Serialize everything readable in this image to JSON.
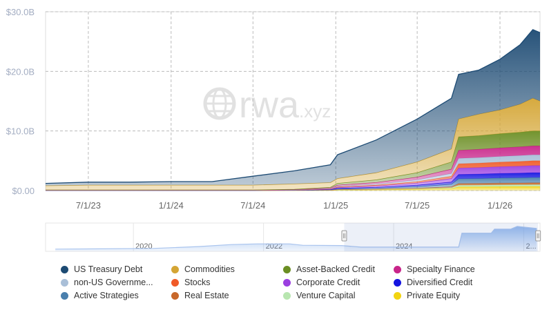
{
  "chart_data": {
    "type": "area",
    "stacked": true,
    "watermark": "rwa.xyz",
    "grid": true,
    "legend_position": "bottom",
    "ylim": [
      0,
      30
    ],
    "y_ticks": [
      "$0.00",
      "$10.0B",
      "$20.0B",
      "$30.0B"
    ],
    "y_tick_values": [
      0,
      10,
      20,
      30
    ],
    "x_ticks": [
      "7/1/23",
      "1/1/24",
      "7/1/24",
      "1/1/25",
      "7/1/25",
      "1/1/26"
    ],
    "x_tick_dates": [
      "2023-07-01",
      "2024-01-01",
      "2024-07-01",
      "2025-01-01",
      "2025-07-01",
      "2026-01-01"
    ],
    "xlim": [
      "2023-03-28",
      "2026-03-31"
    ],
    "x": [
      "2023-03-28",
      "2023-07-01",
      "2023-10-01",
      "2024-01-01",
      "2024-04-01",
      "2024-07-01",
      "2024-10-01",
      "2024-12-20",
      "2025-01-05",
      "2025-04-01",
      "2025-07-01",
      "2025-09-15",
      "2025-10-01",
      "2025-11-15",
      "2026-01-01",
      "2026-02-15",
      "2026-03-15",
      "2026-03-31"
    ],
    "series": [
      {
        "name": "Private Equity",
        "color": "#f2d410",
        "values": [
          0.01,
          0.01,
          0.01,
          0.01,
          0.01,
          0.01,
          0.01,
          0.04,
          0.08,
          0.13,
          0.21,
          0.34,
          0.63,
          0.64,
          0.67,
          0.69,
          0.7,
          0.7
        ]
      },
      {
        "name": "Venture Capital",
        "color": "#b8e6b0",
        "values": [
          0,
          0,
          0,
          0,
          0,
          0,
          0.01,
          0.02,
          0.04,
          0.05,
          0.09,
          0.14,
          0.27,
          0.28,
          0.29,
          0.29,
          0.3,
          0.3
        ]
      },
      {
        "name": "Real Estate",
        "color": "#c8682a",
        "values": [
          0,
          0,
          0,
          0,
          0,
          0,
          0.01,
          0.02,
          0.04,
          0.05,
          0.09,
          0.14,
          0.27,
          0.28,
          0.29,
          0.29,
          0.3,
          0.3
        ]
      },
      {
        "name": "Active Strategies",
        "color": "#4a7fad",
        "values": [
          0.01,
          0.01,
          0.01,
          0.01,
          0.01,
          0.01,
          0.02,
          0.05,
          0.11,
          0.16,
          0.27,
          0.43,
          0.81,
          0.83,
          0.86,
          0.88,
          0.9,
          0.9
        ]
      },
      {
        "name": "Diversified Credit",
        "color": "#1515e0",
        "values": [
          0.01,
          0.01,
          0.01,
          0.01,
          0.01,
          0.01,
          0.02,
          0.04,
          0.1,
          0.14,
          0.24,
          0.38,
          0.72,
          0.74,
          0.76,
          0.78,
          0.8,
          0.8
        ]
      },
      {
        "name": "Corporate Credit",
        "color": "#9b3fe0",
        "values": [
          0.01,
          0.01,
          0.01,
          0.01,
          0.01,
          0.01,
          0.02,
          0.06,
          0.14,
          0.22,
          0.36,
          0.58,
          1.08,
          1.1,
          1.14,
          1.18,
          1.2,
          1.2
        ]
      },
      {
        "name": "Stocks",
        "color": "#f05a28",
        "values": [
          0.01,
          0.01,
          0.01,
          0.01,
          0.01,
          0.01,
          0.02,
          0.04,
          0.1,
          0.14,
          0.24,
          0.38,
          0.72,
          0.74,
          0.76,
          0.78,
          0.8,
          0.8
        ]
      },
      {
        "name": "non-US Governme...",
        "color": "#a9bfd8",
        "values": [
          0.01,
          0.01,
          0.01,
          0.01,
          0.01,
          0.01,
          0.02,
          0.05,
          0.12,
          0.18,
          0.3,
          0.48,
          0.9,
          0.92,
          0.95,
          0.98,
          1.0,
          1.0
        ]
      },
      {
        "name": "Specialty Finance",
        "color": "#c8258a",
        "values": [
          0.02,
          0.02,
          0.02,
          0.02,
          0.02,
          0.02,
          0.03,
          0.08,
          0.18,
          0.27,
          0.45,
          0.72,
          1.35,
          1.38,
          1.43,
          1.47,
          1.5,
          1.5
        ]
      },
      {
        "name": "Asset-Backed Credit",
        "color": "#6b8e23",
        "values": [
          0.03,
          0.03,
          0.03,
          0.03,
          0.03,
          0.03,
          0.05,
          0.13,
          0.3,
          0.45,
          0.75,
          1.2,
          2.25,
          2.3,
          2.38,
          2.45,
          2.5,
          2.5
        ]
      },
      {
        "name": "Commodities",
        "color": "#d4a534",
        "values": [
          0.7,
          0.8,
          0.8,
          0.8,
          0.8,
          0.8,
          0.9,
          0.8,
          0.8,
          1.2,
          1.8,
          2.2,
          3.0,
          3.6,
          4.0,
          4.7,
          5.5,
          5.0
        ]
      },
      {
        "name": "US Treasury Debt",
        "color": "#1c4a73",
        "values": [
          0.4,
          0.5,
          0.5,
          0.6,
          0.6,
          1.5,
          2.2,
          3.0,
          4.0,
          5.5,
          7.2,
          8.5,
          7.5,
          7.4,
          8.5,
          10.0,
          11.5,
          11.5
        ]
      }
    ],
    "navigator": {
      "labels": [
        "2020",
        "2022",
        "2024",
        "2..."
      ],
      "x": [
        2018.8,
        2019.5,
        2020.3,
        2021.0,
        2021.5,
        2021.9,
        2022.4,
        2022.6,
        2023.2,
        2023.5,
        2024.3,
        2025.0,
        2025.05,
        2025.5,
        2025.55,
        2025.8,
        2025.9,
        2026.2
      ],
      "values": [
        0.1,
        0.3,
        0.6,
        2.0,
        3.5,
        4.0,
        4.0,
        3.0,
        2.8,
        1.6,
        1.6,
        1.6,
        12,
        12,
        15,
        15,
        17,
        15.5
      ],
      "selection": [
        "2023-03-28",
        "2026-03-31"
      ]
    },
    "legend": [
      [
        "US Treasury Debt",
        "Commodities",
        "Asset-Backed Credit",
        "Specialty Finance"
      ],
      [
        "non-US Governme...",
        "Stocks",
        "Corporate Credit",
        "Diversified Credit"
      ],
      [
        "Active Strategies",
        "Real Estate",
        "Venture Capital",
        "Private Equity"
      ]
    ]
  }
}
